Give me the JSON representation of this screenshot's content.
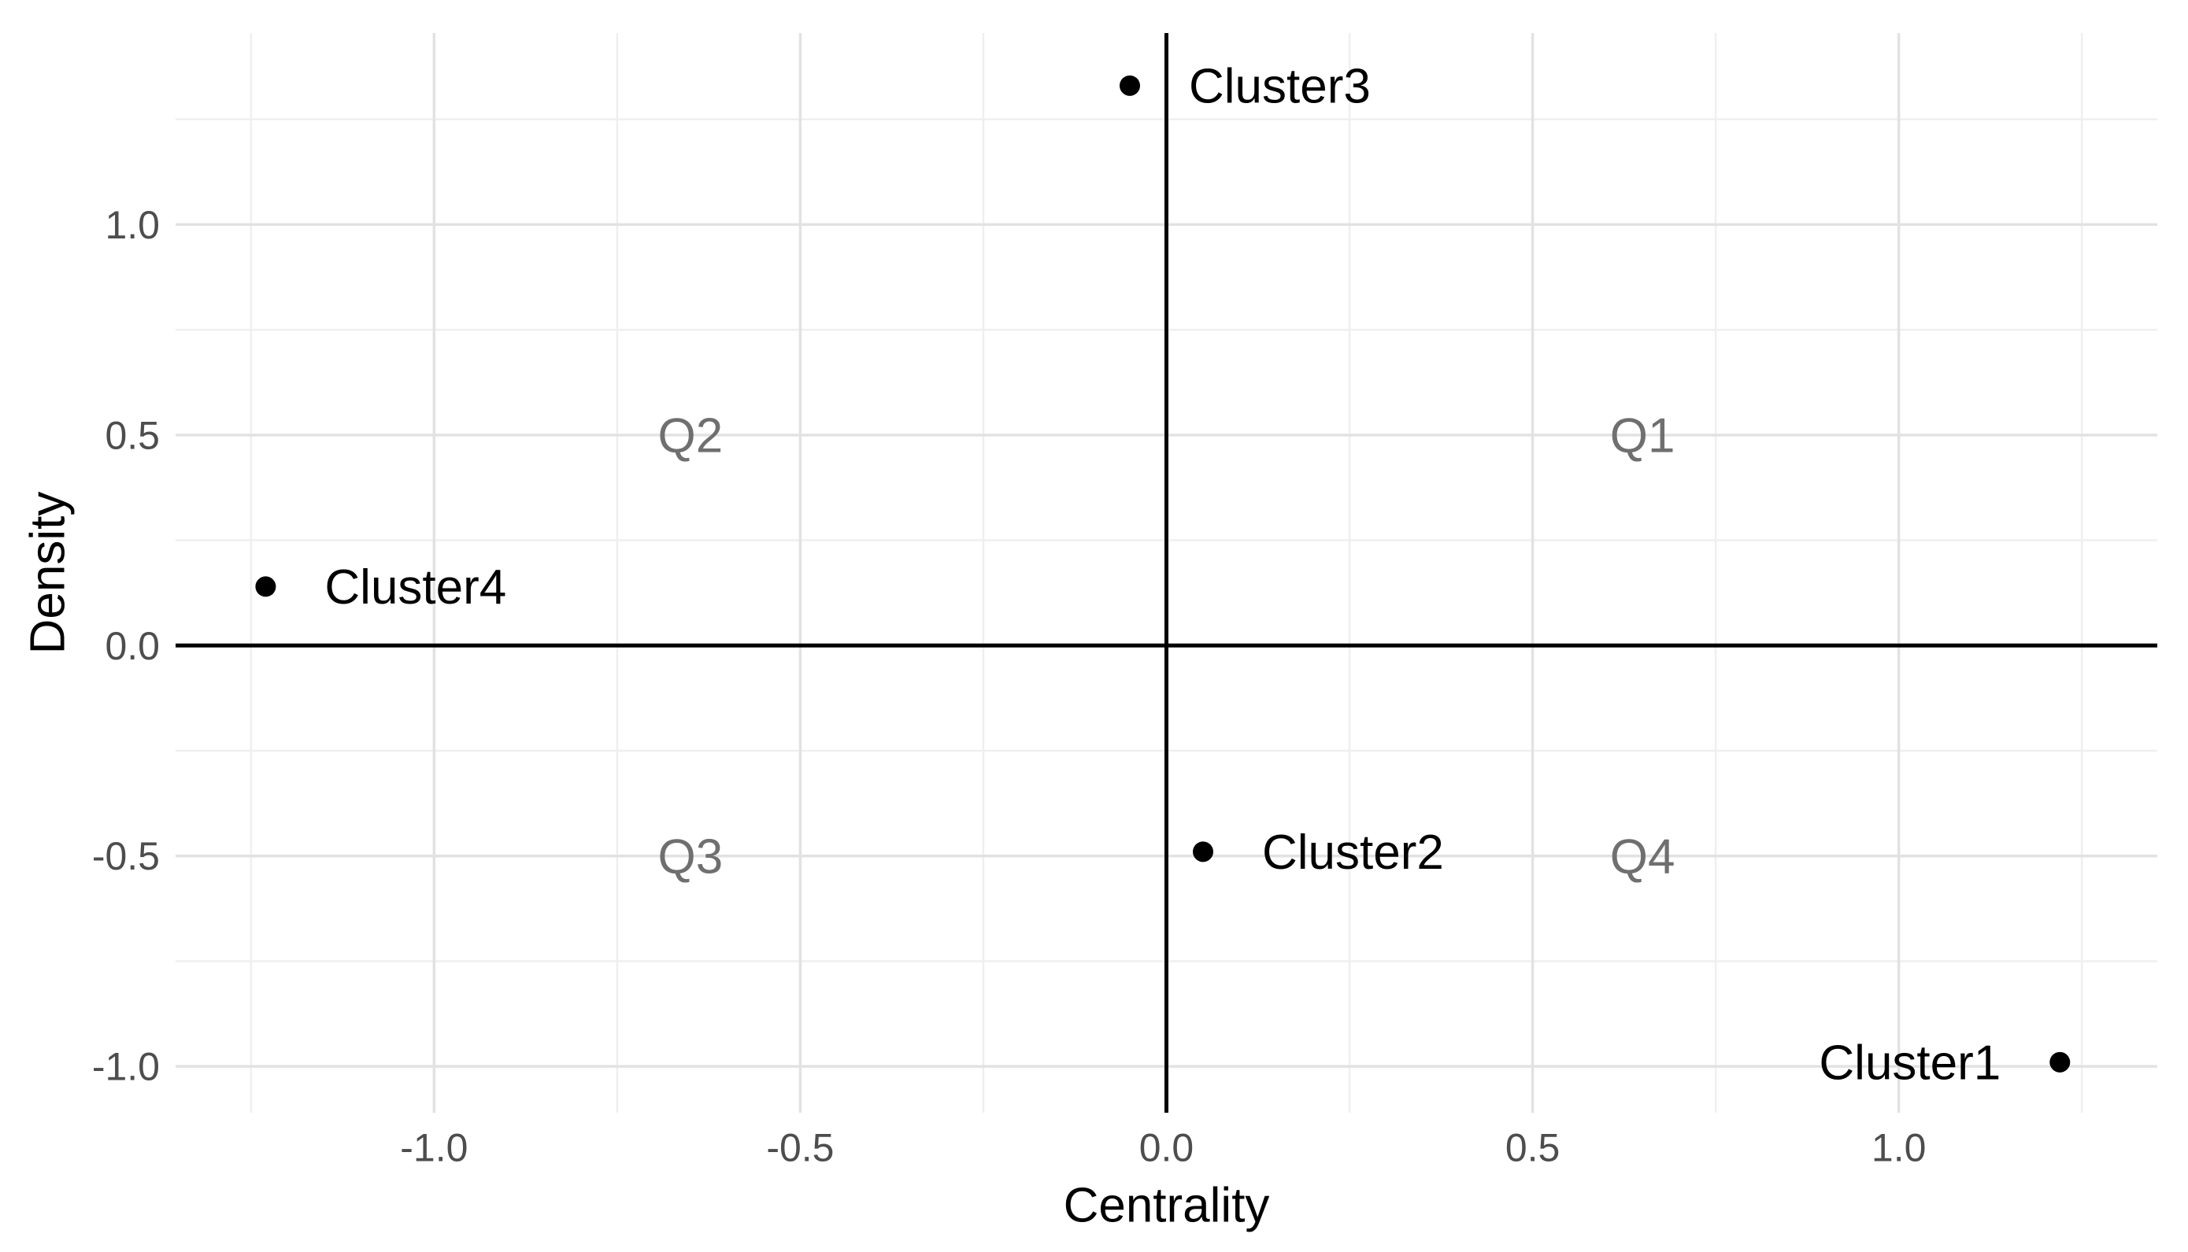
{
  "chart_data": {
    "type": "scatter",
    "title": "",
    "xlabel": "Centrality",
    "ylabel": "Density",
    "xlim": [
      -1.353,
      1.353
    ],
    "ylim": [
      -1.11,
      1.455
    ],
    "x_ticks": [
      -1.0,
      -0.5,
      0.0,
      0.5,
      1.0
    ],
    "x_tick_labels": [
      "-1.0",
      "-0.5",
      "0.0",
      "0.5",
      "1.0"
    ],
    "y_ticks": [
      1.0,
      0.5,
      0.0,
      -0.5,
      -1.0
    ],
    "y_tick_labels": [
      "1.0",
      "0.5",
      "0.0",
      "-0.5",
      "-1.0"
    ],
    "grid": {
      "major_step": 0.5,
      "minor_step": 0.25,
      "visible": true
    },
    "legend": "none",
    "reference_lines": {
      "vline_x": 0,
      "hline_y": 0
    },
    "points": [
      {
        "label": "Cluster1",
        "x": 1.22,
        "y": -0.99,
        "label_side": "left"
      },
      {
        "label": "Cluster2",
        "x": 0.05,
        "y": -0.49,
        "label_side": "right"
      },
      {
        "label": "Cluster3",
        "x": -0.05,
        "y": 1.33,
        "label_side": "right"
      },
      {
        "label": "Cluster4",
        "x": -1.23,
        "y": 0.14,
        "label_side": "right"
      }
    ],
    "quadrant_labels": [
      {
        "label": "Q1",
        "x": 0.65,
        "y": 0.5
      },
      {
        "label": "Q2",
        "x": -0.65,
        "y": 0.5
      },
      {
        "label": "Q3",
        "x": -0.65,
        "y": -0.5
      },
      {
        "label": "Q4",
        "x": 0.65,
        "y": -0.5
      }
    ],
    "colors": {
      "background": "#ffffff",
      "point": "#000000",
      "point_label": "#000000",
      "quadrant_label": "#6f6f6f",
      "grid_major": "#e2e2e2",
      "grid_minor": "#efefef",
      "axis_line": "#000000",
      "tick_label": "#4d4d4d",
      "axis_title": "#000000"
    }
  }
}
